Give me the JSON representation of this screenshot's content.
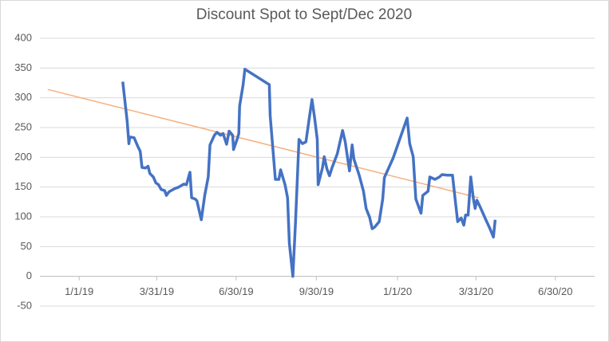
{
  "chart_data": {
    "type": "line",
    "title": "Discount Spot to Sept/Dec 2020",
    "xlim": [
      "11/17/18",
      "8/14/20"
    ],
    "xticks": [
      "1/1/19",
      "3/31/19",
      "6/30/19",
      "9/30/19",
      "1/1/20",
      "3/31/20",
      "6/30/20"
    ],
    "ylim": [
      -50,
      400
    ],
    "yticks": [
      -50,
      0,
      50,
      100,
      150,
      200,
      250,
      300,
      350,
      400
    ],
    "grid": true,
    "series": [
      {
        "color": "#4472c4",
        "x": [
          "2/20/19",
          "2/25/19",
          "2/27/19",
          "2/28/19",
          "3/5/19",
          "3/9/19",
          "3/12/19",
          "3/14/19",
          "3/18/19",
          "3/21/19",
          "3/23/19",
          "3/27/19",
          "3/30/19",
          "4/2/19",
          "4/5/19",
          "4/9/19",
          "4/11/19",
          "4/14/19",
          "4/20/19",
          "4/25/19",
          "5/1/19",
          "5/4/19",
          "5/8/19",
          "5/10/19",
          "5/14/19",
          "5/16/19",
          "5/21/19",
          "5/25/19",
          "5/29/19",
          "5/31/19",
          "6/5/19",
          "6/8/19",
          "6/12/19",
          "6/15/19",
          "6/19/19",
          "6/22/19",
          "6/26/19",
          "6/27/19",
          "7/1/19",
          "7/3/19",
          "7/4/19",
          "7/8/19",
          "7/10/19",
          "8/7/19",
          "8/8/19",
          "8/14/19",
          "8/18/19",
          "8/20/19",
          "8/25/19",
          "8/28/19",
          "8/30/19",
          "9/3/19",
          "9/6/19",
          "9/10/19",
          "9/14/19",
          "9/18/19",
          "9/22/19",
          "9/25/19",
          "9/28/19",
          "10/1/19",
          "10/2/19",
          "10/7/19",
          "10/9/19",
          "10/12/19",
          "10/15/19",
          "10/18/19",
          "10/24/19",
          "10/30/19",
          "11/2/19",
          "11/7/19",
          "11/10/19",
          "11/12/19",
          "11/18/19",
          "11/23/19",
          "11/26/19",
          "11/30/19",
          "12/3/19",
          "12/6/19",
          "12/11/19",
          "12/15/19",
          "12/17/19",
          "12/27/19",
          "1/12/20",
          "1/15/20",
          "1/19/20",
          "1/22/20",
          "1/28/20",
          "1/30/20",
          "2/5/20",
          "2/7/20",
          "2/13/20",
          "2/18/20",
          "2/21/20",
          "2/27/20",
          "3/4/20",
          "3/7/20",
          "3/10/20",
          "3/14/20",
          "3/17/20",
          "3/19/20",
          "3/22/20",
          "3/25/20",
          "3/28/20",
          "3/30/20",
          "4/1/20",
          "4/5/20",
          "4/11/20",
          "4/16/20",
          "4/20/20",
          "4/22/20"
        ],
        "values": [
          327,
          261,
          223,
          234,
          233,
          219,
          210,
          183,
          182,
          185,
          173,
          167,
          157,
          154,
          146,
          144,
          136,
          142,
          147,
          150,
          155,
          154,
          175,
          132,
          130,
          127,
          95,
          136,
          167,
          221,
          237,
          242,
          237,
          240,
          222,
          244,
          237,
          213,
          230,
          240,
          286,
          322,
          348,
          322,
          270,
          163,
          163,
          179,
          154,
          132,
          56,
          0,
          90,
          230,
          223,
          226,
          268,
          297,
          266,
          230,
          154,
          183,
          201,
          181,
          169,
          183,
          206,
          245,
          226,
          177,
          221,
          197,
          170,
          143,
          114,
          99,
          80,
          83,
          92,
          130,
          166,
          199,
          266,
          223,
          201,
          130,
          106,
          136,
          143,
          167,
          163,
          167,
          171,
          170,
          170,
          130,
          92,
          98,
          86,
          103,
          103,
          167,
          130,
          114,
          128,
          116,
          96,
          80,
          66,
          95
        ]
      },
      {
        "color": "#f4b183",
        "x": [
          "11/26/18",
          "4/3/20"
        ],
        "values": [
          314,
          132
        ]
      }
    ]
  }
}
